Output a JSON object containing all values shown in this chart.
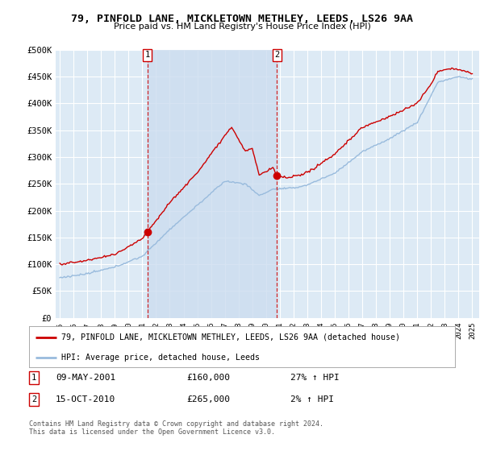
{
  "title": "79, PINFOLD LANE, MICKLETOWN METHLEY, LEEDS, LS26 9AA",
  "subtitle": "Price paid vs. HM Land Registry's House Price Index (HPI)",
  "ylim": [
    0,
    500000
  ],
  "yticks": [
    0,
    50000,
    100000,
    150000,
    200000,
    250000,
    300000,
    350000,
    400000,
    450000,
    500000
  ],
  "ytick_labels": [
    "£0",
    "£50K",
    "£100K",
    "£150K",
    "£200K",
    "£250K",
    "£300K",
    "£350K",
    "£400K",
    "£450K",
    "£500K"
  ],
  "hpi_color": "#99bbdd",
  "price_color": "#cc0000",
  "bg_color": "#ddeaf5",
  "bg_highlight_color": "#ccddef",
  "grid_color": "#ffffff",
  "transaction1": {
    "date": "09-MAY-2001",
    "price": 160000,
    "pct": "27%",
    "direction": "↑",
    "label": "1"
  },
  "transaction2": {
    "date": "15-OCT-2010",
    "price": 265000,
    "pct": "2%",
    "direction": "↑",
    "label": "2"
  },
  "legend_property": "79, PINFOLD LANE, MICKLETOWN METHLEY, LEEDS, LS26 9AA (detached house)",
  "legend_hpi": "HPI: Average price, detached house, Leeds",
  "footnote": "Contains HM Land Registry data © Crown copyright and database right 2024.\nThis data is licensed under the Open Government Licence v3.0.",
  "xlim_start": 1994.7,
  "xlim_end": 2025.5,
  "t1_x": 2001.36,
  "t1_y": 160000,
  "t2_x": 2010.79,
  "t2_y": 265000
}
